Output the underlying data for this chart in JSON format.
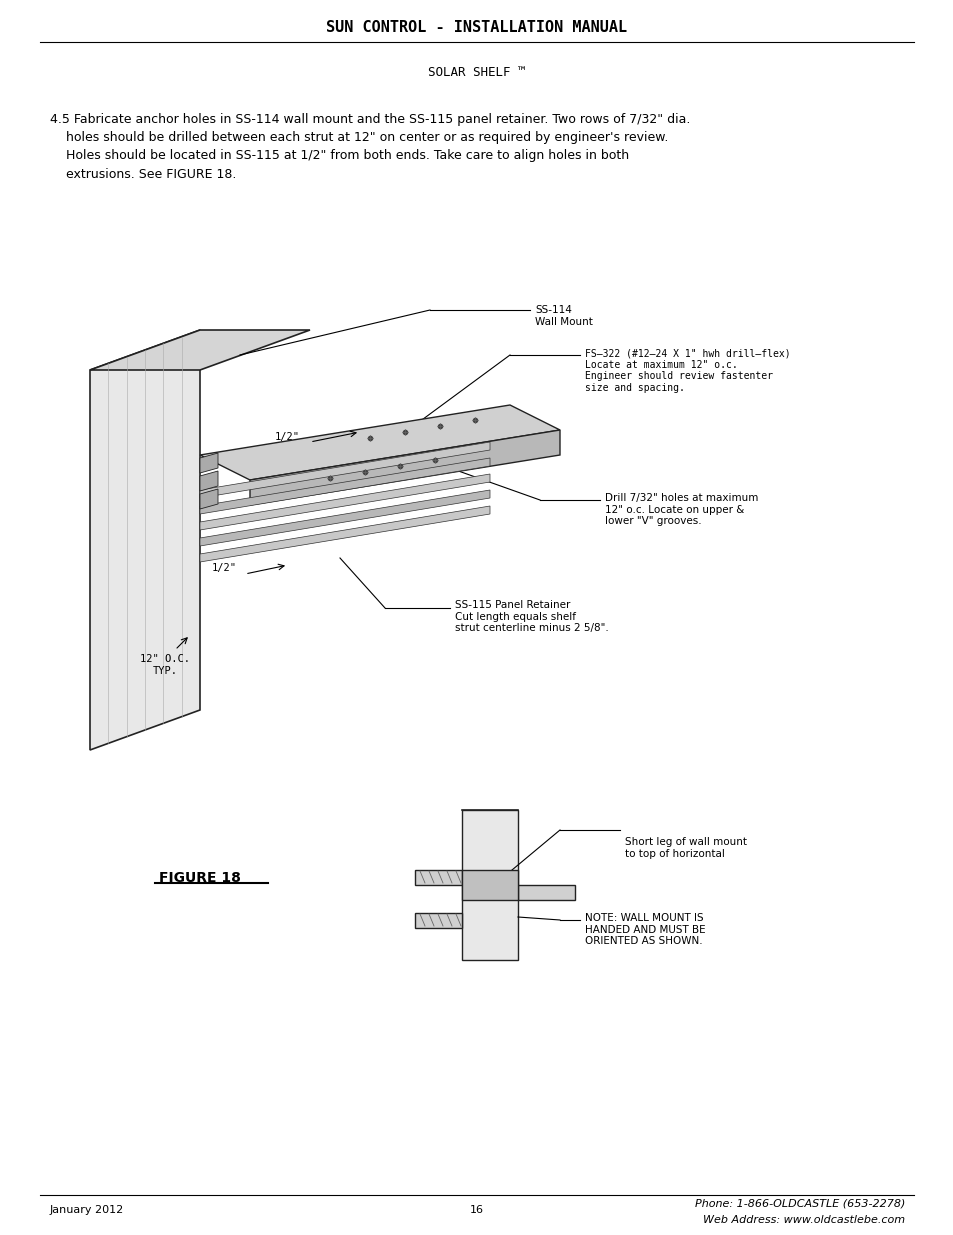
{
  "title": "SUN CONTROL - INSTALLATION MANUAL",
  "subtitle": "SOLAR SHELF ™",
  "body_text_line1": "4.5 Fabricate anchor holes in SS-114 wall mount and the SS-115 panel retainer. Two rows of 7/32\" dia.",
  "body_text_line2": "    holes should be drilled between each strut at 12\" on center or as required by engineer's review.",
  "body_text_line3": "    Holes should be located in SS-115 at 1/2\" from both ends. Take care to align holes in both",
  "body_text_line4": "    extrusions. See FIGURE 18.",
  "figure_label": "FIGURE 18",
  "footer_left": "January 2012",
  "footer_center": "16",
  "footer_right_line1": "Phone: 1-866-OLDCASTLE (653-2278)",
  "footer_right_line2": "Web Address: www.oldcastlebe.com",
  "label_ss114": "SS-114\nWall Mount",
  "label_fs322": "FS–322 (#12–24 X 1\" hwh drill–flex)\nLocate at maximum 12\" o.c.\nEngineer should review fastenter\nsize and spacing.",
  "label_drill": "Drill 7/32\" holes at maximum\n12\" o.c. Locate on upper &\nlower \"V\" grooves.",
  "label_half1": "1/2\"",
  "label_half2": "1/2\"",
  "label_12oc": "12\" O.C.\nTYP.",
  "label_ss115": "SS-115 Panel Retainer\nCut length equals shelf\nstrut centerline minus 2 5/8\".",
  "label_short_leg": "Short leg of wall mount\nto top of horizontal",
  "label_note": "NOTE: WALL MOUNT IS\nHANDED AND MUST BE\nORIENTED AS SHOWN.",
  "bg_color": "#ffffff",
  "text_color": "#000000",
  "line_color": "#000000",
  "gray_color": "#888888",
  "light_gray": "#cccccc",
  "title_fontsize": 11,
  "subtitle_fontsize": 9,
  "body_fontsize": 9,
  "label_fontsize": 7.5,
  "footer_fontsize": 8
}
